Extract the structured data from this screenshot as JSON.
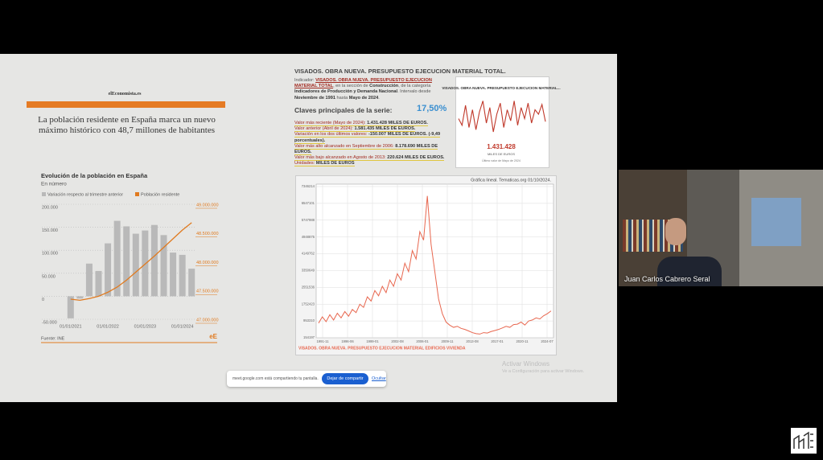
{
  "article": {
    "logo": "elEconomista.es",
    "headline": "La población residente en España marca un nuevo máximo histórico con 48,7 millones de habitantes"
  },
  "population_chart": {
    "title": "Evolución de la población en España",
    "subtitle": "En número",
    "legend": [
      "Variación respecto al trimestre anterior",
      "Población residente"
    ],
    "bar_color": "#b9b9b9",
    "line_color": "#e07a1f",
    "categories": [
      "01/01/2021",
      null,
      null,
      null,
      "01/01/2022",
      null,
      null,
      null,
      "01/01/2023",
      null,
      null,
      null,
      "01/01/2024",
      null
    ],
    "bar_values": [
      -48000,
      -5000,
      71000,
      55000,
      115000,
      164000,
      152000,
      136000,
      143000,
      155000,
      133000,
      95000,
      90000,
      60000
    ],
    "line_values": [
      47350000,
      47330000,
      47360000,
      47400000,
      47470000,
      47560000,
      47680000,
      47820000,
      47960000,
      48100000,
      48250000,
      48400000,
      48550000,
      48680000
    ],
    "ylim": [
      -50000,
      200000
    ],
    "yticks": [
      {
        "value": 200000,
        "label": "200.000"
      },
      {
        "value": 150000,
        "label": "150.000"
      },
      {
        "value": 100000,
        "label": "100.000"
      },
      {
        "value": 50000,
        "label": "50.000"
      },
      0,
      {
        "value": -50000,
        "label": "-50.000"
      }
    ],
    "y2lim": [
      47000000,
      49000000
    ],
    "y2ticks": [
      {
        "value": 49000000,
        "label": "49.000.000"
      },
      {
        "value": 48500000,
        "label": "48.500.000"
      },
      {
        "value": 48000000,
        "label": "48.000.000"
      },
      {
        "value": 47500000,
        "label": "47.500.000"
      },
      {
        "value": 47000000,
        "label": "47.000.000"
      }
    ],
    "source": "Fuente: INE",
    "brand": "eE"
  },
  "tematicas": {
    "title": "VISADOS. OBRA NUEVA. PRESUPUESTO EJECUCION MATERIAL TOTAL.",
    "intro": [
      "Indicador: ",
      "VISADOS. OBRA NUEVA. PRESUPUESTO EJECUCION MATERIAL TOTAL",
      ", en la sección de ",
      "Construcción",
      ", de la categoría ",
      "Indicadores de Producción y Demanda Nacional",
      ". Intervalo desde ",
      "Noviembre de 1991",
      " hasta ",
      "Mayo de 2024",
      "."
    ],
    "keys_heading": "Claves principales de la serie:",
    "keys_percent": "17,50%",
    "keys": [
      [
        "Valor más reciente (Mayo de 2024): ",
        "1.431.428 MILES DE EUROS."
      ],
      [
        "Valor anterior (Abril de 2024): ",
        "1.581.435 MILES DE EUROS."
      ],
      [
        "Variación en los dos últimos valores: ",
        "-150.007 MILES DE EUROS. (-9,49 porcentuales)."
      ],
      [
        "Valor más alto alcanzado en Septiembre de 2006: ",
        "8.178.690 MILES DE EUROS."
      ],
      [
        "Valor más bajo alcanzado en Agosto de 2013: ",
        "220.624 MILES DE EUROS."
      ],
      [
        "Unidades: ",
        "MILES DE EUROS"
      ]
    ],
    "thumbnail": {
      "title": "VISADOS. OBRA NUEVA. PRESUPUESTO EJECUCION MATERIAL...",
      "value": "1.431.428",
      "unit": "MILES DE EUROS",
      "note": "Último valor de Mayo de 2024",
      "color": "#c0392b",
      "ylim": [
        1000000,
        2000000
      ],
      "values": [
        1500000,
        1350000,
        1800000,
        1300000,
        1700000,
        1250000,
        1650000,
        1900000,
        1400000,
        1750000,
        1200000,
        1600000,
        1850000,
        1300000,
        1700000,
        1450000,
        1900000,
        1350000,
        1750000,
        1500000,
        1850000,
        1400000,
        1700000,
        1600000,
        1820000,
        1431428
      ]
    },
    "chart": {
      "caption": "Gráfica lineal. Tematicas.org 01/10/2024.",
      "color": "#e8674f",
      "ylim": [
        154197,
        7346214
      ],
      "yticks": [
        7346214,
        6547101,
        5747988,
        4948875,
        4149762,
        3350649,
        2551536,
        1752423,
        953310,
        154197
      ],
      "xlabels": [
        "1991-11",
        "1996-06",
        "1999-01",
        "2002-08",
        "2006-01",
        "2009-11",
        "2013-08",
        "2017-01",
        "2020-11",
        "2024-07"
      ],
      "values": [
        850000,
        1150000,
        920000,
        1250000,
        1000000,
        1320000,
        1100000,
        1400000,
        1180000,
        1500000,
        1350000,
        1750000,
        1600000,
        2100000,
        1900000,
        2400000,
        2150000,
        2600000,
        2300000,
        2900000,
        2600000,
        3200000,
        2900000,
        3700000,
        3300000,
        4300000,
        3900000,
        5200000,
        4800000,
        6900000,
        4600000,
        3300000,
        2000000,
        1300000,
        900000,
        750000,
        650000,
        700000,
        600000,
        550000,
        480000,
        400000,
        350000,
        330000,
        400000,
        380000,
        450000,
        500000,
        550000,
        620000,
        700000,
        650000,
        780000,
        800000,
        900000,
        760000,
        950000,
        1000000,
        1100000,
        1050000,
        1200000,
        1300000,
        1431428
      ],
      "footer": "VISADOS. OBRA NUEVA. PRESUPUESTO EJECUCION MATERIAL EDIFICIOS VIVIENDA"
    }
  },
  "share_bar": {
    "message": "meet.google.com está compartiendo tu pantalla.",
    "stop_button": "Dejar de compartir",
    "hide_button": "Ocultar"
  },
  "windows_watermark": {
    "title": "Activar Windows",
    "text": "Ve a Configuración para activar Windows."
  },
  "participant": {
    "name": "Juan Carlos Cabrero Seral"
  }
}
